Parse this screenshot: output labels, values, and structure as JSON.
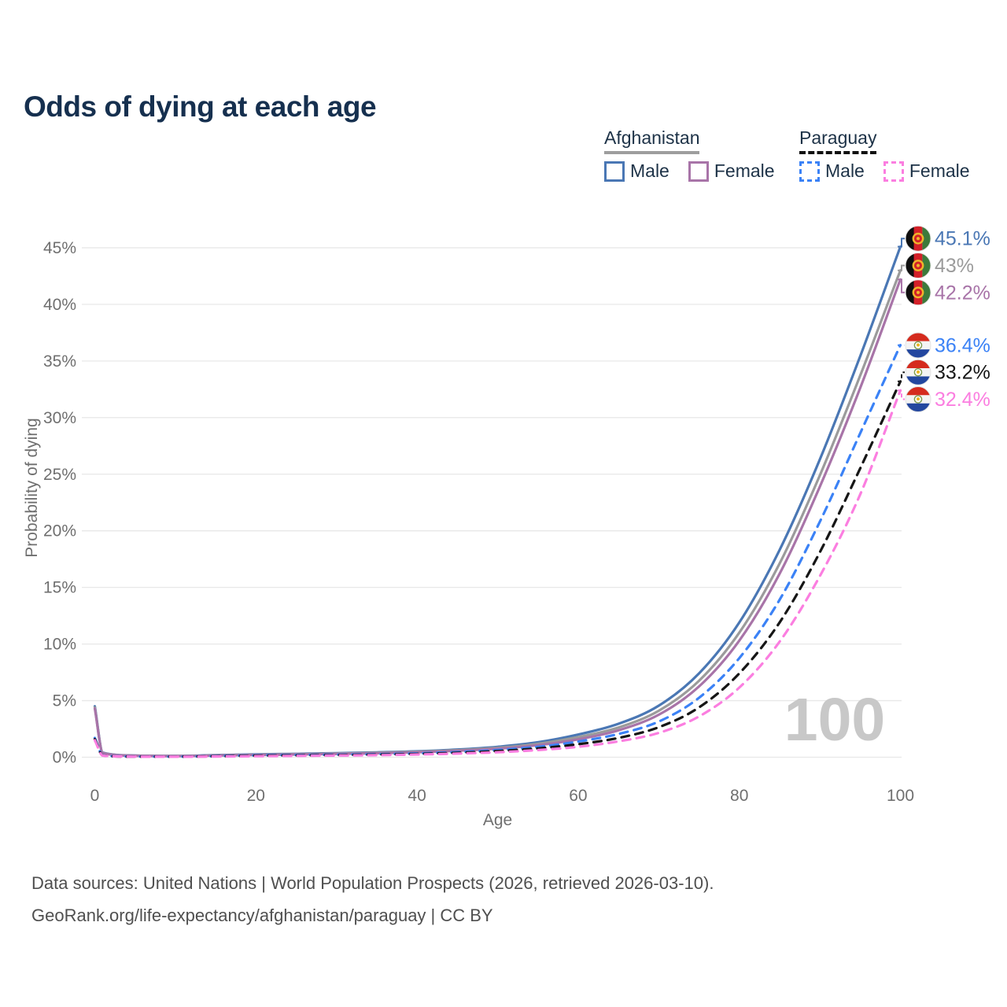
{
  "title": "Odds of dying at each age",
  "watermark": "100",
  "legend": {
    "groups": [
      {
        "name": "Afghanistan",
        "line_style": "solid",
        "underline_color": "#9e9e9e",
        "items": [
          {
            "label": "Male",
            "color": "#4a77b4"
          },
          {
            "label": "Female",
            "color": "#a874a8"
          }
        ]
      },
      {
        "name": "Paraguay",
        "line_style": "dashed",
        "underline_color": "#111111",
        "items": [
          {
            "label": "Male",
            "color": "#3b82f6"
          },
          {
            "label": "Female",
            "color": "#fb7ee0"
          }
        ]
      }
    ]
  },
  "footer": {
    "line1": "Data sources: United Nations | World Population Prospects (2026, retrieved 2026-03-10).",
    "line2": "GeoRank.org/life-expectancy/afghanistan/paraguay | CC BY"
  },
  "chart_data": {
    "type": "line",
    "title": "Odds of dying at each age",
    "xlabel": "Age",
    "ylabel": "Probability of dying",
    "xlim": [
      0,
      100
    ],
    "ylim": [
      0,
      45
    ],
    "x_ticks": [
      0,
      20,
      40,
      60,
      80,
      100
    ],
    "y_tick_labels": [
      "0%",
      "5%",
      "10%",
      "15%",
      "20%",
      "25%",
      "30%",
      "35%",
      "40%",
      "45%"
    ],
    "grid": "horizontal",
    "legend_position": "top-right",
    "x": [
      0,
      1,
      5,
      10,
      15,
      20,
      25,
      30,
      35,
      40,
      45,
      50,
      55,
      60,
      65,
      70,
      75,
      80,
      85,
      90,
      95,
      100
    ],
    "series": [
      {
        "name": "Afghanistan Male",
        "country": "Afghanistan",
        "sex": "Male",
        "color": "#4a77b4",
        "dash": "solid",
        "end_label": "45.1%",
        "flag": "afghanistan",
        "values": [
          4.5,
          0.4,
          0.15,
          0.12,
          0.18,
          0.25,
          0.3,
          0.36,
          0.43,
          0.52,
          0.68,
          0.92,
          1.32,
          2.0,
          2.95,
          4.55,
          7.4,
          11.9,
          18.3,
          26.3,
          35.4,
          45.1
        ]
      },
      {
        "name": "Afghanistan Both sexes",
        "country": "Afghanistan",
        "sex": "Both",
        "color": "#9b9b9b",
        "dash": "solid",
        "end_label": "43%",
        "flag": "afghanistan",
        "values": [
          4.4,
          0.38,
          0.14,
          0.11,
          0.16,
          0.22,
          0.27,
          0.32,
          0.39,
          0.48,
          0.62,
          0.83,
          1.18,
          1.78,
          2.62,
          4.1,
          6.75,
          11.0,
          17.1,
          24.9,
          33.7,
          43.0
        ]
      },
      {
        "name": "Afghanistan Female",
        "country": "Afghanistan",
        "sex": "Female",
        "color": "#a874a8",
        "dash": "solid",
        "end_label": "42.2%",
        "flag": "afghanistan",
        "values": [
          4.3,
          0.36,
          0.13,
          0.1,
          0.15,
          0.2,
          0.24,
          0.29,
          0.35,
          0.44,
          0.57,
          0.75,
          1.06,
          1.58,
          2.38,
          3.75,
          6.25,
          10.3,
          16.2,
          23.9,
          32.6,
          42.2
        ]
      },
      {
        "name": "Paraguay Male",
        "country": "Paraguay",
        "sex": "Male",
        "color": "#3b82f6",
        "dash": "dashed",
        "end_label": "36.4%",
        "flag": "paraguay",
        "values": [
          1.7,
          0.16,
          0.06,
          0.05,
          0.1,
          0.16,
          0.2,
          0.23,
          0.27,
          0.34,
          0.46,
          0.64,
          0.92,
          1.38,
          2.05,
          3.15,
          5.25,
          8.75,
          13.9,
          20.8,
          28.6,
          36.4
        ]
      },
      {
        "name": "Paraguay Both sexes",
        "country": "Paraguay",
        "sex": "Both",
        "color": "#161616",
        "dash": "dashed",
        "end_label": "33.2%",
        "flag": "paraguay",
        "values": [
          1.6,
          0.15,
          0.05,
          0.05,
          0.08,
          0.13,
          0.16,
          0.19,
          0.23,
          0.29,
          0.39,
          0.54,
          0.78,
          1.15,
          1.7,
          2.65,
          4.4,
          7.4,
          11.9,
          18.1,
          25.5,
          33.2
        ]
      },
      {
        "name": "Paraguay Female",
        "country": "Paraguay",
        "sex": "Female",
        "color": "#fb7ee0",
        "dash": "dashed",
        "end_label": "32.4%",
        "flag": "paraguay",
        "values": [
          1.5,
          0.14,
          0.05,
          0.04,
          0.06,
          0.09,
          0.12,
          0.15,
          0.18,
          0.24,
          0.32,
          0.44,
          0.63,
          0.92,
          1.4,
          2.15,
          3.6,
          6.15,
          10.2,
          16.0,
          23.2,
          32.4
        ]
      }
    ]
  }
}
